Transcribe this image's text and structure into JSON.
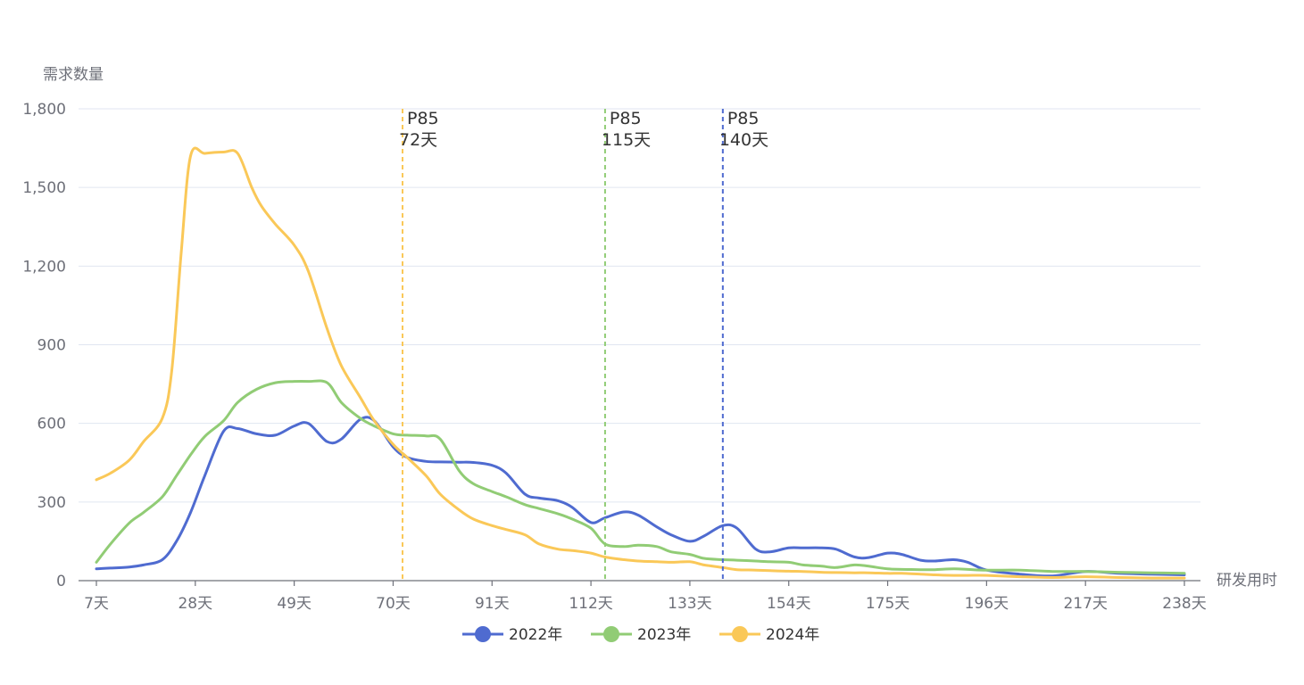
{
  "chart_data": {
    "type": "line",
    "ylabel": "需求数量",
    "xlabel": "研发用时",
    "ylim": [
      0,
      1800
    ],
    "y_ticks": [
      0,
      300,
      600,
      900,
      1200,
      1500,
      1800
    ],
    "y_tick_labels": [
      "0",
      "300",
      "600",
      "900",
      "1,200",
      "1,500",
      "1,800"
    ],
    "x_range": [
      7,
      238
    ],
    "x_ticks": [
      7,
      28,
      49,
      70,
      91,
      112,
      133,
      154,
      175,
      196,
      217,
      238
    ],
    "x_tick_labels": [
      "7天",
      "28天",
      "49天",
      "70天",
      "91天",
      "112天",
      "133天",
      "154天",
      "175天",
      "196天",
      "217天",
      "238天"
    ],
    "grid": "horizontal",
    "legend_position": "bottom",
    "series": [
      {
        "name": "2022年",
        "color": "#4f6bd0",
        "x": [
          7,
          10,
          14,
          17,
          21,
          24,
          27,
          30,
          34,
          37,
          41,
          45,
          49,
          52,
          56,
          59,
          63,
          66,
          70,
          73,
          77,
          80,
          84,
          87,
          91,
          94,
          98,
          101,
          105,
          108,
          112,
          115,
          119,
          122,
          126,
          129,
          133,
          136,
          140,
          143,
          147,
          150,
          154,
          157,
          161,
          164,
          168,
          171,
          175,
          178,
          182,
          185,
          189,
          192,
          196,
          203,
          210,
          217,
          224,
          231,
          238
        ],
        "y": [
          45,
          48,
          52,
          60,
          80,
          150,
          260,
          400,
          570,
          580,
          560,
          555,
          590,
          600,
          530,
          540,
          615,
          610,
          510,
          470,
          455,
          453,
          452,
          451,
          440,
          410,
          330,
          315,
          305,
          280,
          222,
          240,
          262,
          250,
          205,
          175,
          150,
          170,
          210,
          200,
          120,
          110,
          125,
          125,
          125,
          120,
          90,
          88,
          105,
          100,
          78,
          75,
          80,
          70,
          40,
          25,
          18,
          35,
          28,
          25,
          22
        ]
      },
      {
        "name": "2023年",
        "color": "#91cc75",
        "x": [
          7,
          10,
          14,
          17,
          21,
          24,
          27,
          30,
          34,
          37,
          41,
          45,
          49,
          52,
          56,
          59,
          63,
          66,
          70,
          73,
          77,
          80,
          84,
          87,
          91,
          94,
          98,
          101,
          105,
          108,
          112,
          115,
          119,
          122,
          126,
          129,
          133,
          136,
          140,
          143,
          147,
          150,
          154,
          157,
          161,
          164,
          168,
          171,
          175,
          178,
          182,
          185,
          189,
          192,
          196,
          203,
          210,
          217,
          224,
          231,
          238
        ],
        "y": [
          70,
          140,
          220,
          260,
          320,
          400,
          480,
          550,
          610,
          680,
          730,
          755,
          760,
          760,
          755,
          680,
          620,
          590,
          560,
          555,
          552,
          540,
          420,
          370,
          340,
          320,
          290,
          275,
          255,
          235,
          200,
          140,
          130,
          135,
          130,
          110,
          100,
          85,
          80,
          78,
          75,
          72,
          70,
          60,
          55,
          50,
          60,
          55,
          45,
          43,
          42,
          42,
          45,
          43,
          40,
          40,
          35,
          35,
          32,
          30,
          28
        ]
      },
      {
        "name": "2024年",
        "color": "#fac858",
        "x": [
          7,
          10,
          14,
          17,
          21,
          23,
          25,
          27,
          30,
          34,
          37,
          40,
          42,
          45,
          49,
          52,
          56,
          59,
          63,
          66,
          70,
          73,
          77,
          80,
          84,
          87,
          91,
          94,
          98,
          101,
          105,
          108,
          112,
          115,
          119,
          122,
          126,
          129,
          133,
          136,
          140,
          143,
          147,
          150,
          154,
          157,
          161,
          164,
          168,
          171,
          175,
          178,
          182,
          185,
          189,
          192,
          196,
          203,
          210,
          217,
          224,
          231,
          238
        ],
        "y": [
          385,
          410,
          460,
          530,
          620,
          800,
          1250,
          1620,
          1630,
          1635,
          1630,
          1500,
          1430,
          1360,
          1280,
          1180,
          960,
          820,
          700,
          610,
          520,
          470,
          400,
          330,
          270,
          235,
          210,
          195,
          175,
          140,
          120,
          115,
          105,
          90,
          80,
          75,
          72,
          70,
          72,
          60,
          50,
          42,
          40,
          38,
          36,
          35,
          32,
          31,
          30,
          30,
          28,
          28,
          25,
          22,
          20,
          20,
          20,
          15,
          12,
          15,
          12,
          10,
          10
        ]
      }
    ],
    "markers": [
      {
        "x": 72,
        "label_top": "P85",
        "label_bottom": "72天",
        "color": "#fac858"
      },
      {
        "x": 115,
        "label_top": "P85",
        "label_bottom": "115天",
        "color": "#91cc75"
      },
      {
        "x": 140,
        "label_top": "P85",
        "label_bottom": "140天",
        "color": "#4f6bd0"
      }
    ]
  }
}
